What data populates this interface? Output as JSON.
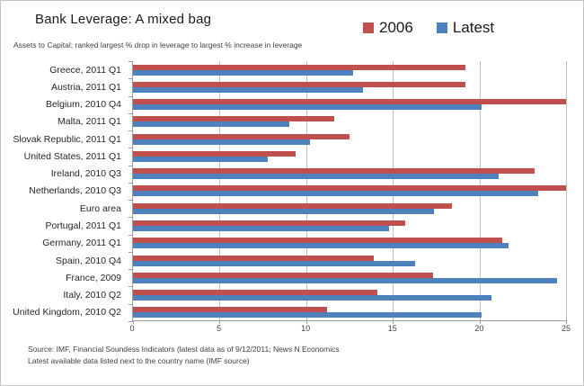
{
  "title": "Bank Leverage: A mixed bag",
  "subtitle": "Assets to  Capital; ranked largest % drop in leverage to largest % increase in leverage",
  "legend": {
    "items": [
      {
        "label": "2006",
        "color": "#C0504D"
      },
      {
        "label": "Latest",
        "color": "#4F81BD"
      }
    ]
  },
  "footer": {
    "line1": "Source:  IMF, Financial Soundess Indicators (latest data as of 9/12/2011;  News N Economics",
    "line2": "Latest available data listed next to the country name (IMF source)"
  },
  "chart_data": {
    "type": "bar",
    "orientation": "horizontal",
    "title": "Bank Leverage: A mixed bag",
    "xlabel": "",
    "ylabel": "",
    "xlim": [
      0,
      25
    ],
    "xticks": [
      0,
      5,
      10,
      15,
      20,
      25
    ],
    "grid": true,
    "legend_position": "top-right",
    "categories": [
      "Greece, 2011 Q1",
      "Austria, 2011 Q1",
      "Belgium, 2010 Q4",
      "Malta, 2011 Q1",
      "Slovak Republic, 2011 Q1",
      "United States, 2011 Q1",
      "Ireland, 2010 Q3",
      "Netherlands, 2010 Q3",
      "Euro area",
      "Portugal, 2011 Q1",
      "Germany, 2011 Q1",
      "Spain, 2010 Q4",
      "France, 2009",
      "Italy, 2010 Q2",
      "United Kingdom, 2010 Q2"
    ],
    "series": [
      {
        "name": "2006",
        "color": "#C0504D",
        "values": [
          19.2,
          19.2,
          25.0,
          11.6,
          12.5,
          9.4,
          23.2,
          25.0,
          18.4,
          15.7,
          21.3,
          13.9,
          17.3,
          14.1,
          11.2
        ]
      },
      {
        "name": "Latest",
        "color": "#4F81BD",
        "values": [
          12.7,
          13.3,
          20.1,
          9.0,
          10.2,
          7.8,
          21.1,
          23.4,
          17.4,
          14.8,
          21.7,
          16.3,
          24.5,
          20.7,
          20.1
        ]
      }
    ]
  }
}
